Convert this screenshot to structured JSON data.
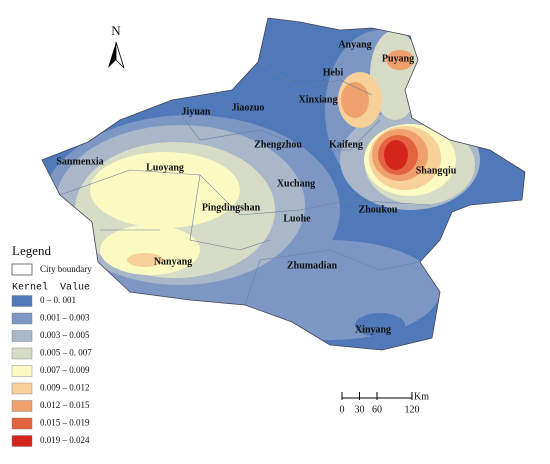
{
  "north": "N",
  "cities": [
    "Anyang",
    "Puyang",
    "Hebi",
    "Xinxiang",
    "Jiyuan",
    "Jiaozuo",
    "Zhengzhou",
    "Kaifeng",
    "Sanmenxia",
    "Luoyang",
    "Shangqiu",
    "Xuchang",
    "Pingdingshan",
    "Luohe",
    "Zhoukou",
    "Nanyang",
    "Zhumadian",
    "Xinyang"
  ],
  "legend": {
    "title": "Legend",
    "boundary": "City boundary",
    "subtitle": "Kernel  Value",
    "items": [
      {
        "label": "0 – 0. 001",
        "color": "#5079b9"
      },
      {
        "label": "0.001 – 0.003",
        "color": "#7c97c4"
      },
      {
        "label": "0.003 – 0.005",
        "color": "#a9b7c9"
      },
      {
        "label": "0.005 – 0. 007",
        "color": "#d7dcc6"
      },
      {
        "label": "0.007 – 0.009",
        "color": "#fafac2"
      },
      {
        "label": "0.009 – 0.012",
        "color": "#f8d09a"
      },
      {
        "label": "0.012 – 0.015",
        "color": "#f0a06c"
      },
      {
        "label": "0.015 – 0.019",
        "color": "#e4633f"
      },
      {
        "label": "0.019 – 0.024",
        "color": "#d4241c"
      }
    ]
  },
  "scale": {
    "ticks": [
      0,
      30,
      60,
      120
    ],
    "unit": "Km"
  }
}
